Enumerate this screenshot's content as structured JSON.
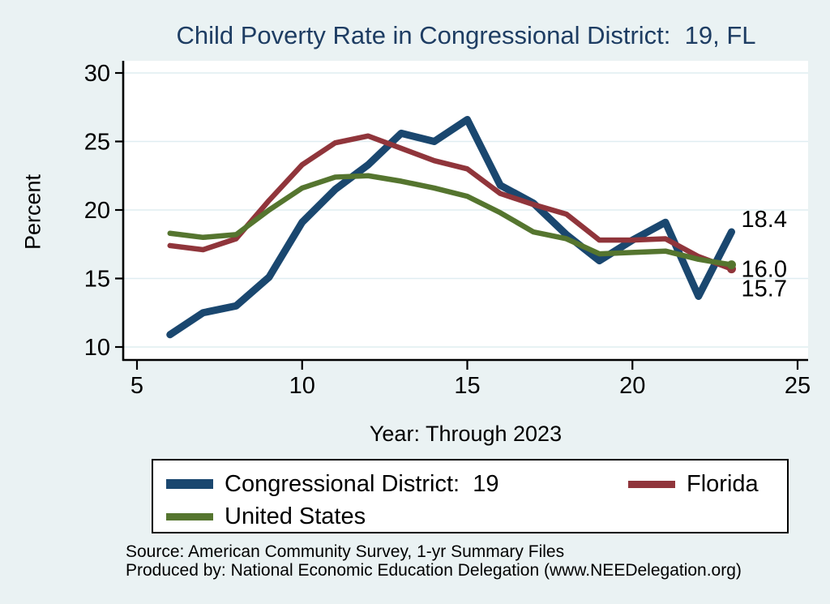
{
  "title": "Child Poverty Rate in Congressional District:  19, FL",
  "chart_data": {
    "type": "line",
    "title": "Child Poverty Rate in Congressional District:  19, FL",
    "xlabel": "Year: Through 2023",
    "ylabel": "Percent",
    "xlim": [
      5,
      25
    ],
    "ylim": [
      10,
      30
    ],
    "x_ticks": [
      5,
      10,
      15,
      20,
      25
    ],
    "y_ticks": [
      10,
      15,
      20,
      25,
      30
    ],
    "grid": true,
    "grid_color": "#dfedf1",
    "plot_background": "#ffffff",
    "page_background": "#eaf2f3",
    "legend_position": "bottom",
    "x": [
      6,
      7,
      8,
      9,
      10,
      11,
      12,
      13,
      14,
      15,
      16,
      17,
      18,
      19,
      20,
      21,
      22,
      23
    ],
    "series": [
      {
        "name": "Congressional District:  19",
        "slug": "congressional-district-19",
        "color": "#1a476f",
        "width": 9,
        "end_dot": false,
        "end_label": "18.4",
        "label_dy": -16,
        "values": [
          10.9,
          12.5,
          13.0,
          15.1,
          19.1,
          21.5,
          23.3,
          25.6,
          25.0,
          26.6,
          21.8,
          20.5,
          18.2,
          16.3,
          17.8,
          19.1,
          13.7,
          18.4
        ]
      },
      {
        "name": "Florida",
        "slug": "florida",
        "color": "#90353b",
        "width": 6.5,
        "end_dot": true,
        "end_label": "15.7",
        "label_dy": 24,
        "values": [
          17.4,
          17.1,
          17.9,
          20.7,
          23.3,
          24.9,
          25.4,
          24.5,
          23.6,
          23.0,
          21.2,
          20.4,
          19.7,
          17.8,
          17.8,
          17.9,
          16.6,
          15.7
        ]
      },
      {
        "name": "United States",
        "slug": "united-states",
        "color": "#55752f",
        "width": 6.5,
        "end_dot": true,
        "end_label": "16.0",
        "label_dy": 5,
        "values": [
          18.3,
          18.0,
          18.2,
          20.0,
          21.6,
          22.4,
          22.5,
          22.1,
          21.6,
          21.0,
          19.8,
          18.4,
          17.9,
          16.8,
          16.9,
          17.0,
          16.4,
          16.0
        ]
      }
    ]
  },
  "footer": {
    "source": "Source: American Community Survey, 1-yr Summary Files",
    "produced_by": "Produced by: National Economic Education Delegation (www.NEEDelegation.org)"
  }
}
